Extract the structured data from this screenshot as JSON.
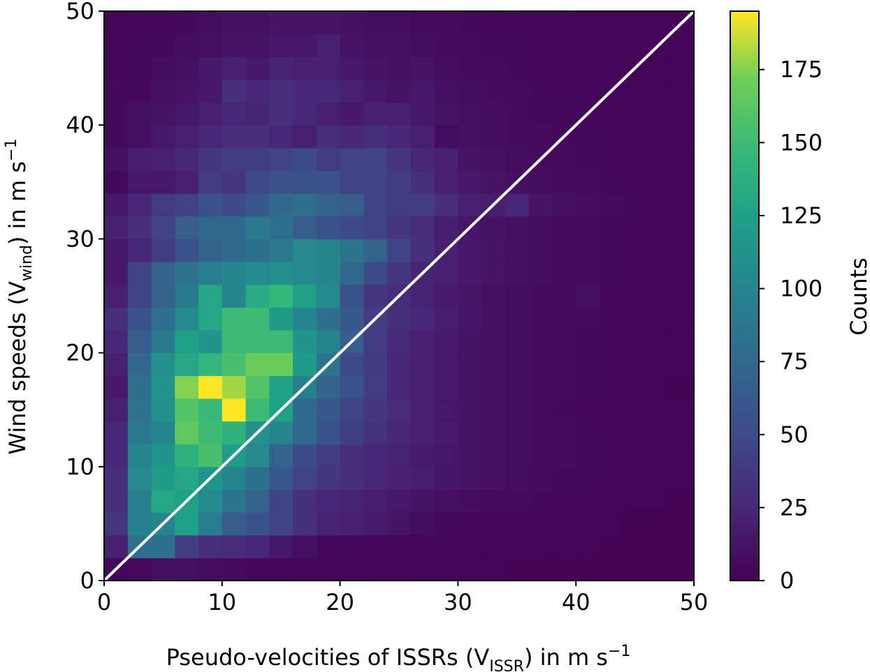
{
  "chart_data": {
    "type": "heatmap",
    "xlabel": {
      "main": "Pseudo-velocities of ISSRs (V",
      "sub": "ISSR",
      "after": ") in m s",
      "sup": "−1"
    },
    "ylabel": {
      "main": "Wind speeds (V",
      "sub": "wind",
      "after": ") in m s",
      "sup": "−1"
    },
    "colorbar_label": "Counts",
    "xlim": [
      0,
      50
    ],
    "ylim": [
      0,
      50
    ],
    "x_ticks": [
      0,
      10,
      20,
      30,
      40,
      50
    ],
    "y_ticks": [
      0,
      10,
      20,
      30,
      40,
      50
    ],
    "colorbar_ticks": [
      0,
      25,
      50,
      75,
      100,
      125,
      150,
      175
    ],
    "colorbar_range": [
      0,
      195
    ],
    "colormap": "viridis",
    "bins": 25,
    "bin_width": 2,
    "diagonal_line": {
      "from": [
        0,
        0
      ],
      "to": [
        50,
        50
      ],
      "color": "#ffffff"
    },
    "grid": false,
    "counts": [
      [
        4,
        6,
        10,
        9,
        8,
        7,
        4,
        3,
        2,
        2,
        3,
        2,
        2,
        3,
        3,
        2,
        2,
        1,
        1,
        1,
        1,
        1,
        1,
        1,
        1
      ],
      [
        20,
        80,
        80,
        40,
        30,
        28,
        25,
        15,
        10,
        5,
        5,
        4,
        3,
        3,
        3,
        2,
        2,
        2,
        2,
        2,
        2,
        1,
        1,
        1,
        1
      ],
      [
        35,
        95,
        100,
        125,
        92,
        65,
        55,
        45,
        30,
        22,
        20,
        17,
        12,
        8,
        5,
        4,
        3,
        3,
        3,
        2,
        2,
        2,
        1,
        1,
        1
      ],
      [
        30,
        95,
        130,
        125,
        105,
        85,
        70,
        45,
        30,
        25,
        22,
        18,
        15,
        12,
        10,
        8,
        6,
        6,
        5,
        4,
        4,
        3,
        2,
        2,
        1
      ],
      [
        30,
        105,
        120,
        130,
        115,
        100,
        80,
        60,
        45,
        35,
        30,
        25,
        20,
        18,
        14,
        12,
        10,
        8,
        6,
        5,
        5,
        4,
        3,
        3,
        2
      ],
      [
        25,
        100,
        115,
        140,
        155,
        120,
        105,
        70,
        50,
        40,
        30,
        25,
        22,
        17,
        15,
        12,
        10,
        8,
        7,
        6,
        5,
        4,
        3,
        3,
        2
      ],
      [
        25,
        90,
        100,
        165,
        150,
        140,
        110,
        100,
        75,
        55,
        42,
        33,
        25,
        20,
        16,
        12,
        10,
        8,
        7,
        6,
        5,
        4,
        3,
        2,
        2
      ],
      [
        20,
        85,
        110,
        160,
        148,
        195,
        150,
        125,
        75,
        60,
        45,
        35,
        28,
        20,
        15,
        12,
        10,
        8,
        7,
        5,
        4,
        4,
        3,
        2,
        3
      ],
      [
        15,
        80,
        115,
        175,
        195,
        180,
        160,
        125,
        95,
        70,
        55,
        40,
        25,
        20,
        16,
        12,
        10,
        8,
        7,
        6,
        5,
        4,
        3,
        2,
        1
      ],
      [
        20,
        75,
        110,
        130,
        145,
        155,
        170,
        170,
        120,
        85,
        50,
        38,
        25,
        20,
        16,
        12,
        10,
        8,
        7,
        6,
        5,
        4,
        3,
        2,
        2
      ],
      [
        25,
        65,
        90,
        125,
        115,
        150,
        150,
        150,
        115,
        100,
        65,
        40,
        27,
        20,
        16,
        12,
        10,
        8,
        7,
        6,
        5,
        4,
        3,
        2,
        2
      ],
      [
        30,
        55,
        80,
        105,
        130,
        150,
        150,
        120,
        100,
        80,
        60,
        40,
        30,
        25,
        18,
        14,
        10,
        8,
        7,
        7,
        6,
        4,
        3,
        2,
        2
      ],
      [
        20,
        45,
        70,
        90,
        130,
        100,
        135,
        145,
        125,
        105,
        55,
        35,
        28,
        22,
        16,
        13,
        10,
        8,
        7,
        6,
        10,
        4,
        3,
        2,
        4
      ],
      [
        15,
        45,
        70,
        85,
        95,
        100,
        105,
        110,
        105,
        100,
        75,
        50,
        35,
        22,
        20,
        15,
        12,
        10,
        8,
        7,
        6,
        5,
        4,
        3,
        2
      ],
      [
        15,
        25,
        40,
        55,
        70,
        75,
        80,
        90,
        105,
        100,
        85,
        70,
        45,
        30,
        20,
        15,
        12,
        10,
        8,
        7,
        6,
        5,
        4,
        3,
        2
      ],
      [
        20,
        30,
        45,
        65,
        75,
        75,
        90,
        80,
        65,
        55,
        50,
        45,
        35,
        28,
        18,
        14,
        11,
        10,
        8,
        7,
        6,
        5,
        4,
        3,
        2
      ],
      [
        15,
        25,
        40,
        45,
        55,
        50,
        60,
        75,
        80,
        70,
        65,
        45,
        40,
        40,
        30,
        20,
        18,
        25,
        12,
        10,
        8,
        6,
        5,
        4,
        3
      ],
      [
        5,
        15,
        15,
        20,
        40,
        35,
        50,
        55,
        55,
        55,
        45,
        45,
        40,
        30,
        20,
        15,
        12,
        10,
        8,
        7,
        6,
        5,
        4,
        3,
        2
      ],
      [
        10,
        18,
        20,
        25,
        35,
        40,
        40,
        45,
        50,
        40,
        45,
        45,
        35,
        25,
        20,
        12,
        10,
        8,
        7,
        6,
        5,
        4,
        3,
        3,
        2
      ],
      [
        5,
        10,
        15,
        20,
        25,
        30,
        30,
        25,
        20,
        30,
        25,
        30,
        25,
        20,
        8,
        10,
        8,
        7,
        6,
        5,
        5,
        4,
        3,
        3,
        2
      ],
      [
        5,
        10,
        12,
        15,
        20,
        25,
        22,
        30,
        25,
        20,
        15,
        20,
        20,
        15,
        12,
        10,
        8,
        7,
        5,
        5,
        4,
        4,
        3,
        3,
        3
      ],
      [
        5,
        5,
        10,
        12,
        15,
        30,
        25,
        30,
        25,
        25,
        20,
        15,
        12,
        15,
        10,
        8,
        7,
        6,
        5,
        4,
        4,
        3,
        3,
        2,
        2
      ],
      [
        3,
        5,
        8,
        10,
        15,
        20,
        15,
        22,
        20,
        20,
        15,
        12,
        10,
        12,
        8,
        7,
        6,
        5,
        4,
        4,
        3,
        3,
        2,
        2,
        2
      ],
      [
        3,
        5,
        5,
        8,
        10,
        12,
        12,
        15,
        15,
        20,
        12,
        10,
        10,
        8,
        7,
        6,
        5,
        5,
        4,
        3,
        3,
        2,
        2,
        2,
        2
      ],
      [
        2,
        3,
        4,
        5,
        8,
        10,
        10,
        12,
        12,
        12,
        10,
        8,
        8,
        6,
        6,
        5,
        4,
        4,
        3,
        3,
        2,
        2,
        2,
        2,
        2
      ]
    ]
  }
}
